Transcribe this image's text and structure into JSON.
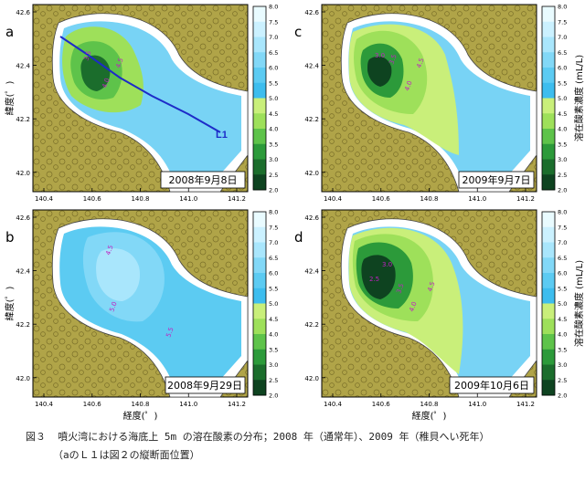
{
  "figure": {
    "lat_ticks": [
      "42.6",
      "42.4",
      "42.2",
      "42.0"
    ],
    "lon_ticks": [
      "140.4",
      "140.6",
      "140.8",
      "141.0",
      "141.2"
    ],
    "ylabel": "緯度(゜)",
    "xlabel": "経度(゜)",
    "colorbar_label": "溶在酸素濃度 (mL/L)",
    "colorbar_ticks": [
      "8.0",
      "7.5",
      "7.0",
      "6.5",
      "6.0",
      "5.5",
      "5.0",
      "4.5",
      "4.0",
      "3.5",
      "3.0",
      "2.5",
      "2.0"
    ],
    "colorbar_colors": [
      "#e9fbff",
      "#cbf1ff",
      "#a9e6fc",
      "#82d8f7",
      "#5ccbf2",
      "#3dbdee",
      "#c9ef7a",
      "#9ee05a",
      "#5ec34a",
      "#2c9a3a",
      "#1b6d2c",
      "#0e4320"
    ],
    "transect_label": "L1"
  },
  "panels": [
    {
      "letter": "a",
      "date": "2008年9月8日",
      "labels": [
        "3.5",
        "4.0",
        "4.5",
        "5.0"
      ]
    },
    {
      "letter": "c",
      "date": "2009年9月7日",
      "labels": [
        "3.0",
        "3.5",
        "4.0",
        "4.5"
      ]
    },
    {
      "letter": "b",
      "date": "2008年9月29日",
      "labels": [
        "4.5",
        "5.0",
        "5.5"
      ]
    },
    {
      "letter": "d",
      "date": "2009年10月6日",
      "labels": [
        "2.5",
        "3.0",
        "3.5",
        "4.0",
        "4.5"
      ]
    }
  ],
  "caption": {
    "line1": "図３  噴火湾における海底上 5m の溶在酸素の分布；2008 年（通常年）、2009 年（稚貝へい死年）",
    "line2": "（aのＬ１は図２の縦断面位置）"
  },
  "chart_data": [
    {
      "type": "map",
      "title": "2008年9月8日",
      "panel": "a",
      "xlabel": "経度(゜)",
      "ylabel": "緯度(゜)",
      "xlim": [
        140.35,
        141.25
      ],
      "ylim": [
        41.95,
        42.6
      ],
      "min_do": 3.5,
      "contour_labels": [
        3.5,
        4.0,
        4.5,
        5.0
      ],
      "transect": "L1"
    },
    {
      "type": "map",
      "title": "2009年9月7日",
      "panel": "c",
      "xlabel": "経度(゜)",
      "ylabel": "緯度(゜)",
      "xlim": [
        140.35,
        141.25
      ],
      "ylim": [
        41.95,
        42.6
      ],
      "min_do": 3.0,
      "contour_labels": [
        3.0,
        3.5,
        4.0,
        4.5
      ]
    },
    {
      "type": "map",
      "title": "2008年9月29日",
      "panel": "b",
      "xlabel": "経度(゜)",
      "ylabel": "緯度(゜)",
      "xlim": [
        140.35,
        141.25
      ],
      "ylim": [
        41.95,
        42.6
      ],
      "min_do": 4.5,
      "contour_labels": [
        4.5,
        5.0,
        5.5
      ]
    },
    {
      "type": "map",
      "title": "2009年10月6日",
      "panel": "d",
      "xlabel": "経度(゜)",
      "ylabel": "緯度(゜)",
      "xlim": [
        140.35,
        141.25
      ],
      "ylim": [
        41.95,
        42.6
      ],
      "min_do": 2.5,
      "contour_labels": [
        2.5,
        3.0,
        3.5,
        4.0,
        4.5
      ]
    }
  ]
}
